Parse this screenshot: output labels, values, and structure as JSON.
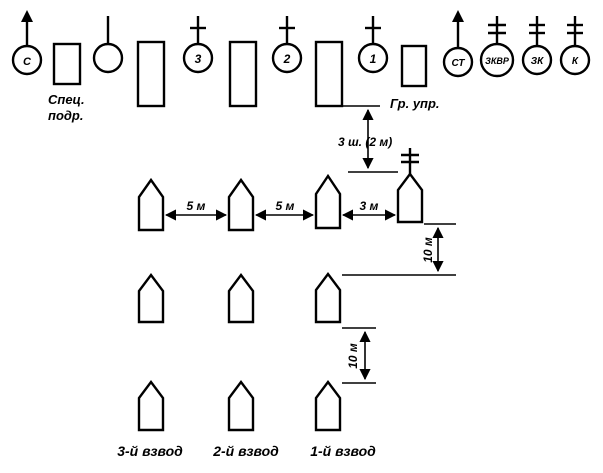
{
  "top_row": {
    "circles": [
      {
        "label": "С",
        "symbol": "arrow"
      },
      {
        "label": "",
        "symbol": "stem"
      },
      {
        "label": "3",
        "symbol": "cross"
      },
      {
        "label": "2",
        "symbol": "cross"
      },
      {
        "label": "1",
        "symbol": "cross"
      },
      {
        "label": "СТ",
        "symbol": "arrow"
      },
      {
        "label": "ЗКВР",
        "symbol": "double-cross"
      },
      {
        "label": "ЗК",
        "symbol": "double-cross"
      },
      {
        "label": "К",
        "symbol": "double-cross"
      }
    ],
    "spec_label_line1": "Спец.",
    "spec_label_line2": "подр.",
    "control_group_label": "Гр. упр."
  },
  "dimensions": {
    "steps_label": "3 ш. (2 м)",
    "gap_5m_a": "5 м",
    "gap_5m_b": "5 м",
    "gap_3m": "3 м",
    "gap_10m_a": "10 м",
    "gap_10m_b": "10 м"
  },
  "platoons": {
    "third": "3-й взвод",
    "second": "2-й взвод",
    "first": "1-й взвод"
  }
}
